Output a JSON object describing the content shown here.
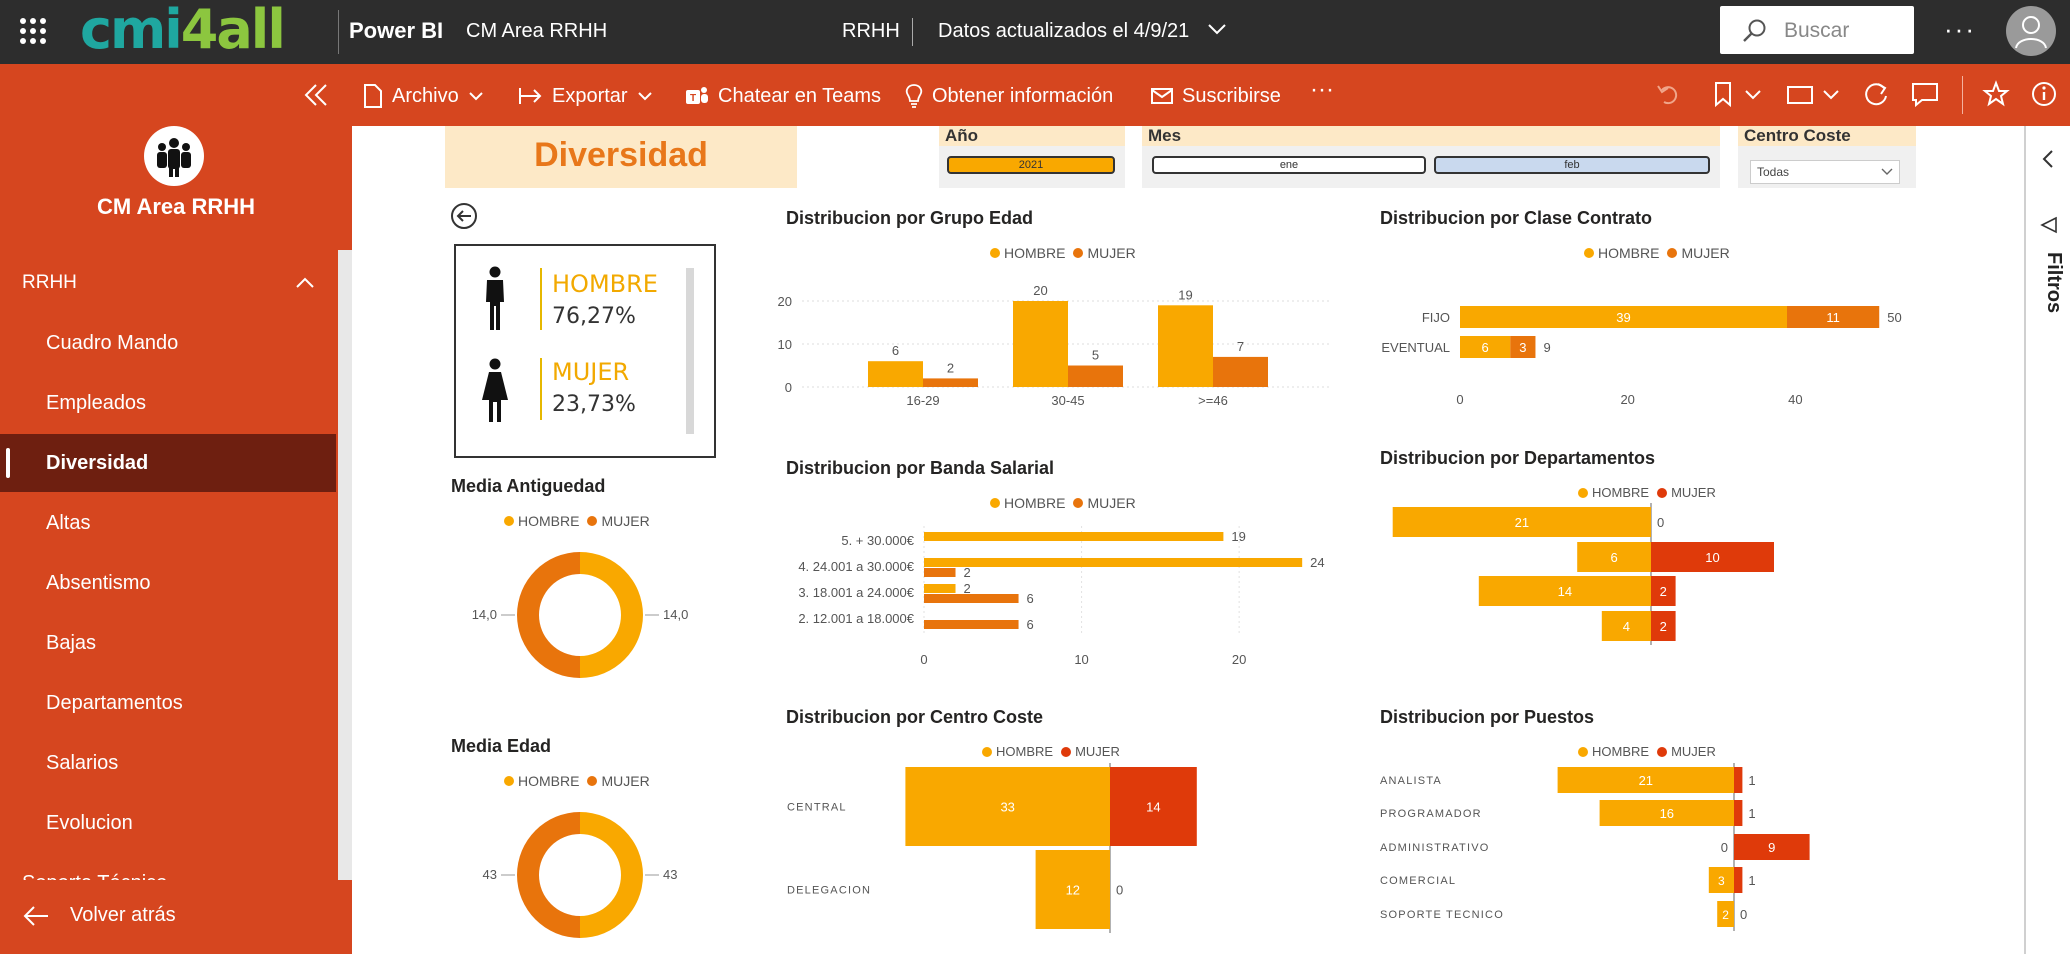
{
  "topbar": {
    "app_name": "Power BI",
    "report_name": "CM Area RRHH",
    "workspace": "RRHH",
    "updated": "Datos actualizados el 4/9/21",
    "search_placeholder": "Buscar",
    "more": "···",
    "logo_part1": "cmi",
    "logo_part2": "4all"
  },
  "actionbar": {
    "file": "Archivo",
    "export": "Exportar",
    "teams": "Chatear en Teams",
    "insights": "Obtener información",
    "subscribe": "Suscribirse",
    "more": "···"
  },
  "sidebar": {
    "title": "CM Area RRHH",
    "section": "RRHH",
    "items": [
      {
        "label": "Cuadro Mando",
        "active": false
      },
      {
        "label": "Empleados",
        "active": false
      },
      {
        "label": "Diversidad",
        "active": true
      },
      {
        "label": "Altas",
        "active": false
      },
      {
        "label": "Absentismo",
        "active": false
      },
      {
        "label": "Bajas",
        "active": false
      },
      {
        "label": "Departamentos",
        "active": false
      },
      {
        "label": "Salarios",
        "active": false
      },
      {
        "label": "Evolucion",
        "active": false
      },
      {
        "label": "Soporte Técnico",
        "active": false
      }
    ],
    "back": "Volver atrás"
  },
  "filters_pane": {
    "label": "Filtros"
  },
  "report": {
    "page_title": "Diversidad",
    "slicers": {
      "year": {
        "label": "Año",
        "options": [
          "2021"
        ],
        "selected": "2021"
      },
      "month": {
        "label": "Mes",
        "options": [
          "ene",
          "feb"
        ],
        "selected": "feb"
      },
      "cost_center": {
        "label": "Centro Coste",
        "value": "Todas"
      }
    },
    "gender_card": {
      "male_label": "HOMBRE",
      "male_pct": "76,27%",
      "female_label": "MUJER",
      "female_pct": "23,73%"
    },
    "legend": {
      "male": "HOMBRE",
      "female": "MUJER"
    },
    "colors": {
      "male": "#f9a800",
      "female": "#e8740c",
      "female_red": "#df3a0a",
      "title_orange": "#e8771a",
      "sidebar": "#d6461f",
      "topbar": "#2d2d2d"
    }
  },
  "chart_data": [
    {
      "id": "donut_antiguedad",
      "type": "pie",
      "title": "Media Antiguedad",
      "categories": [
        "HOMBRE",
        "MUJER"
      ],
      "values": [
        14.0,
        14.0
      ],
      "labels": [
        "14,0",
        "14,0"
      ]
    },
    {
      "id": "donut_edad",
      "type": "pie",
      "title": "Media Edad",
      "categories": [
        "HOMBRE",
        "MUJER"
      ],
      "values": [
        43,
        43
      ],
      "labels": [
        "43",
        "43"
      ]
    },
    {
      "id": "grupo_edad",
      "type": "bar",
      "title": "Distribucion por Grupo Edad",
      "categories": [
        "16-29",
        "30-45",
        ">=46"
      ],
      "series": [
        {
          "name": "HOMBRE",
          "values": [
            6,
            20,
            19
          ]
        },
        {
          "name": "MUJER",
          "values": [
            2,
            5,
            7
          ]
        }
      ],
      "ylim": [
        0,
        20
      ],
      "yticks": [
        "0",
        "10",
        "20"
      ]
    },
    {
      "id": "clase_contrato",
      "type": "bar",
      "orientation": "horizontal-stacked",
      "title": "Distribucion por Clase Contrato",
      "categories": [
        "FIJO",
        "EVENTUAL"
      ],
      "series": [
        {
          "name": "HOMBRE",
          "values": [
            39,
            6
          ]
        },
        {
          "name": "MUJER",
          "values": [
            11,
            3
          ]
        }
      ],
      "totals": [
        50,
        9
      ],
      "xlim": [
        0,
        52
      ],
      "xticks": [
        "0",
        "20",
        "40"
      ]
    },
    {
      "id": "banda_salarial",
      "type": "bar",
      "orientation": "horizontal-grouped",
      "title": "Distribucion por Banda Salarial",
      "categories": [
        "5. + 30.000€",
        "4. 24.001 a 30.000€",
        "3. 18.001 a 24.000€",
        "2. 12.001 a 18.000€"
      ],
      "series": [
        {
          "name": "HOMBRE",
          "values": [
            19,
            24,
            2,
            null
          ]
        },
        {
          "name": "MUJER",
          "values": [
            null,
            2,
            6,
            6
          ]
        }
      ],
      "xlim": [
        0,
        24
      ],
      "xticks": [
        "0",
        "10",
        "20"
      ]
    },
    {
      "id": "departamentos",
      "type": "bar",
      "orientation": "horizontal-diverging",
      "title": "Distribucion por Departamentos",
      "categories": [
        "",
        "",
        "",
        ""
      ],
      "series": [
        {
          "name": "HOMBRE",
          "values": [
            21,
            6,
            14,
            4
          ]
        },
        {
          "name": "MUJER",
          "values": [
            0,
            10,
            2,
            2
          ]
        }
      ]
    },
    {
      "id": "centro_coste",
      "type": "bar",
      "orientation": "horizontal-diverging",
      "title": "Distribucion por Centro Coste",
      "categories": [
        "CENTRAL",
        "DELEGACION"
      ],
      "series": [
        {
          "name": "HOMBRE",
          "values": [
            33,
            12
          ]
        },
        {
          "name": "MUJER",
          "values": [
            14,
            0
          ]
        }
      ]
    },
    {
      "id": "puestos",
      "type": "bar",
      "orientation": "horizontal-diverging",
      "title": "Distribucion por Puestos",
      "categories": [
        "ANALISTA",
        "PROGRAMADOR",
        "ADMINISTRATIVO",
        "COMERCIAL",
        "SOPORTE TECNICO"
      ],
      "series": [
        {
          "name": "HOMBRE",
          "values": [
            21,
            16,
            0,
            3,
            2
          ]
        },
        {
          "name": "MUJER",
          "values": [
            1,
            1,
            9,
            1,
            0
          ]
        }
      ]
    }
  ]
}
